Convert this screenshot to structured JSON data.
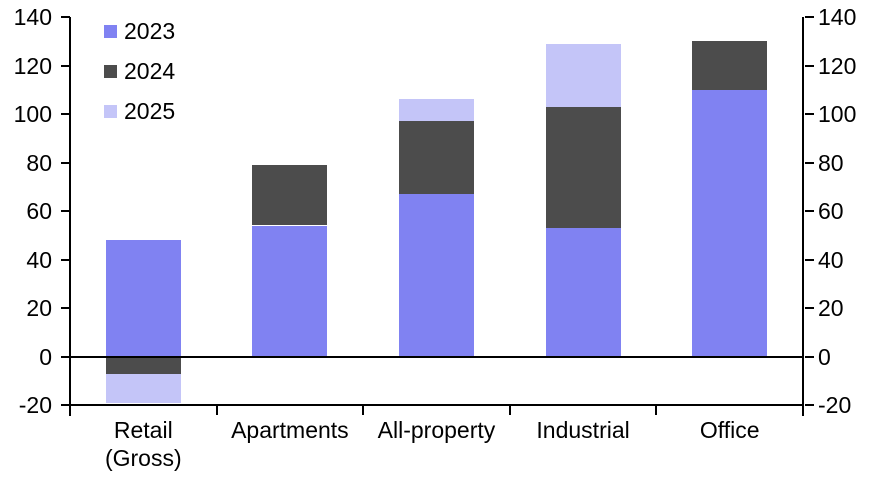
{
  "chart_data": {
    "type": "bar",
    "stacked": true,
    "title": "",
    "xlabel": "",
    "ylabel": "",
    "grid": false,
    "background": "#FFFFFF",
    "axis_color": "#000000",
    "legend_position": "top-left",
    "categories": [
      {
        "label": "Retail (Gross)",
        "lines": [
          "Retail",
          "(Gross)"
        ]
      },
      {
        "label": "Apartments",
        "lines": [
          "Apartments"
        ]
      },
      {
        "label": "All-property",
        "lines": [
          "All-property"
        ]
      },
      {
        "label": "Industrial",
        "lines": [
          "Industrial"
        ]
      },
      {
        "label": "Office",
        "lines": [
          "Office"
        ]
      }
    ],
    "series": [
      {
        "name": "2023",
        "color": "#8082F2",
        "values": [
          48,
          54,
          67,
          53,
          110
        ]
      },
      {
        "name": "2024",
        "color": "#4C4C4C",
        "values": [
          -7,
          25,
          30,
          50,
          20
        ]
      },
      {
        "name": "2025",
        "color": "#C4C5F8",
        "values": [
          -12,
          0,
          9,
          26,
          0
        ]
      }
    ],
    "y_axis": {
      "min": -20,
      "max": 140,
      "step": 20,
      "tick_labels": [
        "140",
        "120",
        "100",
        "80",
        "60",
        "40",
        "20",
        "0",
        "-20"
      ],
      "sides": [
        "left",
        "right"
      ]
    }
  }
}
